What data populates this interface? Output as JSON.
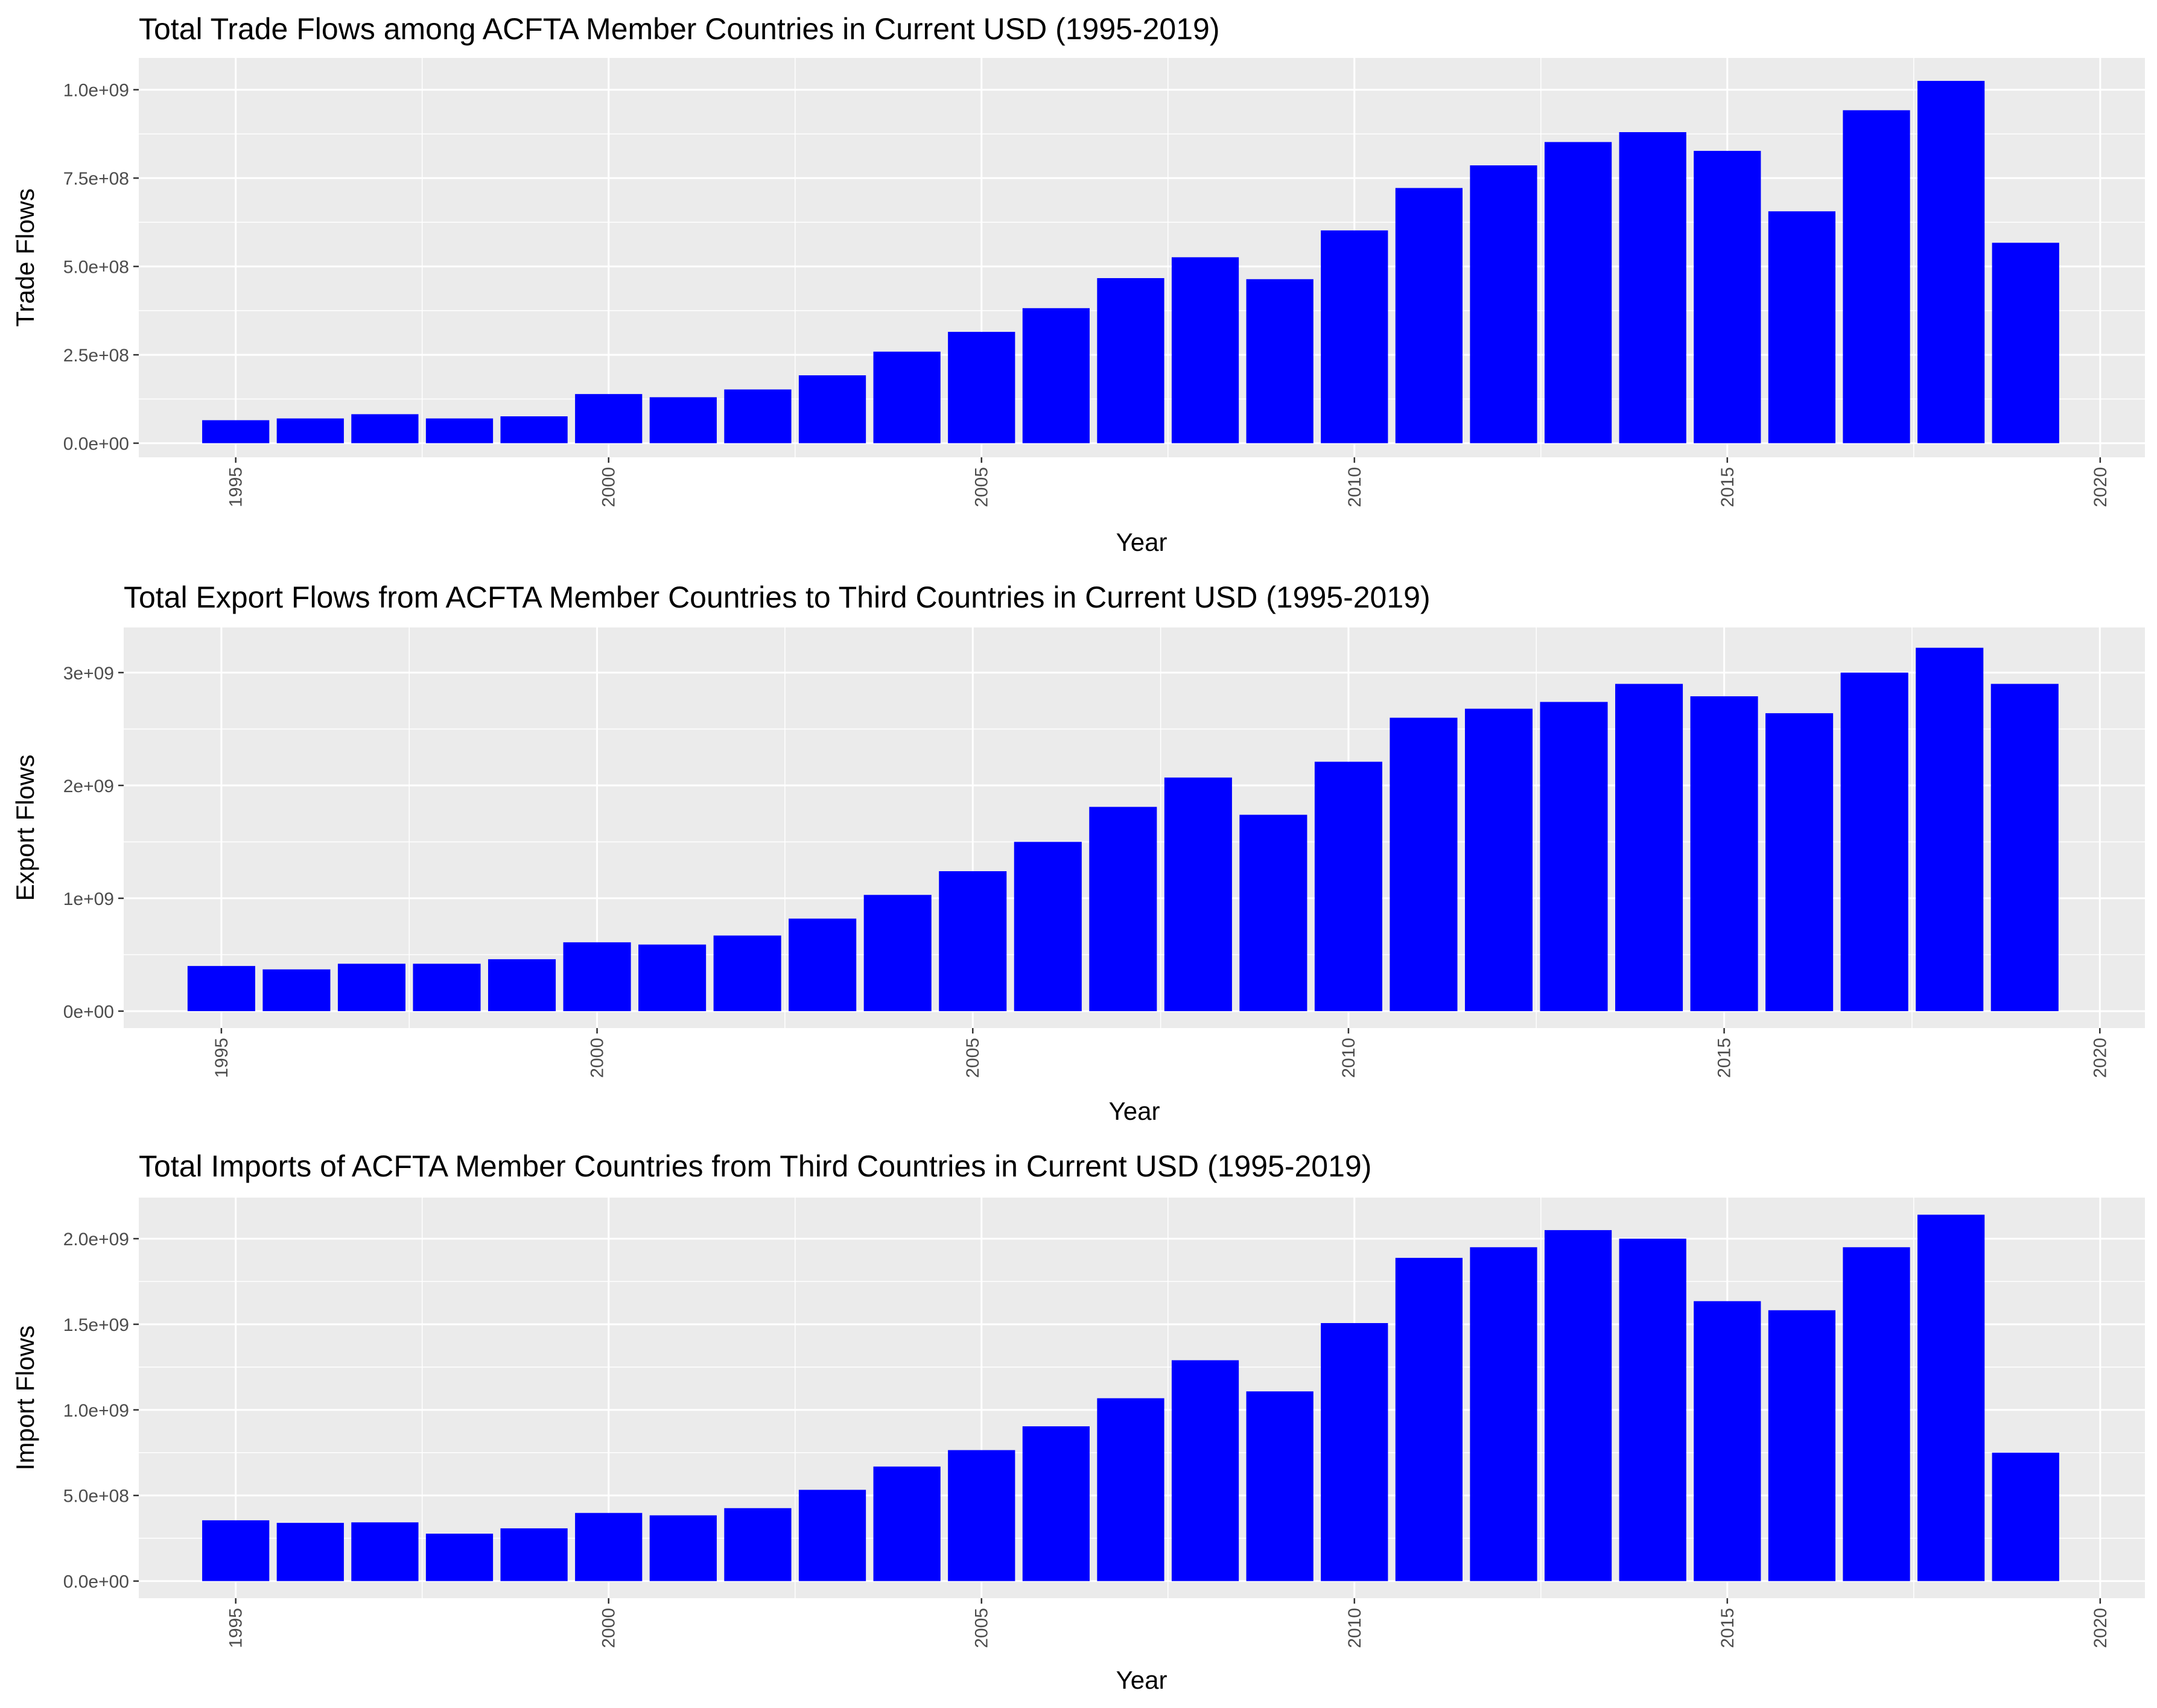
{
  "colors": {
    "bar": "#0000ff",
    "panel": "#ebebeb",
    "grid": "#ffffff",
    "tick_text": "#4d4d4d"
  },
  "chart_data": [
    {
      "type": "bar",
      "title": "Total Trade Flows among ACFTA Member Countries in Current USD (1995-2019)",
      "xlabel": "Year",
      "ylabel": "Trade Flows",
      "categories": [
        1995,
        1996,
        1997,
        1998,
        1999,
        2000,
        2001,
        2002,
        2003,
        2004,
        2005,
        2006,
        2007,
        2008,
        2009,
        2010,
        2011,
        2012,
        2013,
        2014,
        2015,
        2016,
        2017,
        2018,
        2019
      ],
      "values": [
        65000000.0,
        70000000.0,
        82000000.0,
        70000000.0,
        76000000.0,
        139000000.0,
        130000000.0,
        152000000.0,
        192000000.0,
        259000000.0,
        315000000.0,
        382000000.0,
        467000000.0,
        526000000.0,
        464000000.0,
        602000000.0,
        722000000.0,
        786000000.0,
        852000000.0,
        880000000.0,
        827000000.0,
        656000000.0,
        942000000.0,
        1025000000.0,
        567000000.0
      ],
      "xlim": [
        1993.7,
        2020.6
      ],
      "ylim": [
        -40000000.0,
        1090000000.0
      ],
      "xticks": [
        "1995",
        "2000",
        "2005",
        "2010",
        "2015",
        "2020"
      ],
      "yticks": [
        "0.0e+00",
        "2.5e+08",
        "5.0e+08",
        "7.5e+08",
        "1.0e+09"
      ],
      "grid": true,
      "legend": "none"
    },
    {
      "type": "bar",
      "title": "Total Export Flows from ACFTA Member Countries to Third Countries in Current USD (1995-2019)",
      "xlabel": "Year",
      "ylabel": "Export Flows",
      "categories": [
        1995,
        1996,
        1997,
        1998,
        1999,
        2000,
        2001,
        2002,
        2003,
        2004,
        2005,
        2006,
        2007,
        2008,
        2009,
        2010,
        2011,
        2012,
        2013,
        2014,
        2015,
        2016,
        2017,
        2018,
        2019
      ],
      "values": [
        400000000.0,
        370000000.0,
        420000000.0,
        420000000.0,
        460000000.0,
        610000000.0,
        590000000.0,
        670000000.0,
        820000000.0,
        1030000000.0,
        1240000000.0,
        1500000000.0,
        1810000000.0,
        2070000000.0,
        1740000000.0,
        2210000000.0,
        2600000000.0,
        2680000000.0,
        2740000000.0,
        2900000000.0,
        2790000000.0,
        2640000000.0,
        3000000000.0,
        3220000000.0,
        2900000000.0
      ],
      "xlim": [
        1993.7,
        2020.6
      ],
      "ylim": [
        -150000000.0,
        3400000000.0
      ],
      "xticks": [
        "1995",
        "2000",
        "2005",
        "2010",
        "2015",
        "2020"
      ],
      "yticks": [
        "0e+00",
        "1e+09",
        "2e+09",
        "3e+09"
      ],
      "grid": true,
      "legend": "none"
    },
    {
      "type": "bar",
      "title": "Total Imports of ACFTA Member Countries from Third Countries in Current USD (1995-2019)",
      "xlabel": "Year",
      "ylabel": "Import Flows",
      "categories": [
        1995,
        1996,
        1997,
        1998,
        1999,
        2000,
        2001,
        2002,
        2003,
        2004,
        2005,
        2006,
        2007,
        2008,
        2009,
        2010,
        2011,
        2012,
        2013,
        2014,
        2015,
        2016,
        2017,
        2018,
        2019
      ],
      "values": [
        355000000.0,
        340000000.0,
        343000000.0,
        277000000.0,
        308000000.0,
        398000000.0,
        384000000.0,
        426000000.0,
        533000000.0,
        669000000.0,
        765000000.0,
        904000000.0,
        1068000000.0,
        1290000000.0,
        1108000000.0,
        1507000000.0,
        1888000000.0,
        1950000000.0,
        2050000000.0,
        2000000000.0,
        1635000000.0,
        1582000000.0,
        1950000000.0,
        2140000000.0,
        750000000.0
      ],
      "xlim": [
        1993.7,
        2020.6
      ],
      "ylim": [
        -100000000.0,
        2240000000.0
      ],
      "xticks": [
        "1995",
        "2000",
        "2005",
        "2010",
        "2015",
        "2020"
      ],
      "yticks": [
        "0.0e+00",
        "5.0e+08",
        "1.0e+09",
        "1.5e+09",
        "2.0e+09"
      ],
      "grid": true,
      "legend": "none"
    }
  ]
}
